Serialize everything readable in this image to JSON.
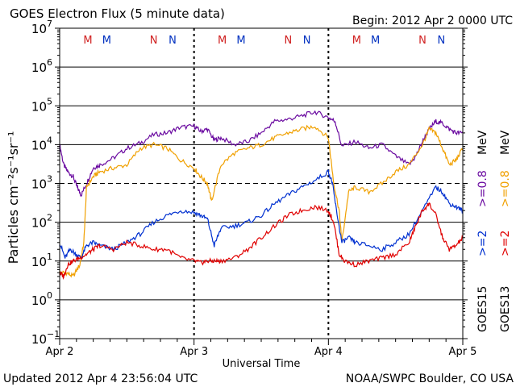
{
  "header": {
    "title": "GOES Electron Flux (5 minute data)",
    "begin": "Begin: 2012 Apr 2 0000 UTC"
  },
  "footer": {
    "updated": "Updated 2012 Apr  4 23:56:04 UTC",
    "credit": "NOAA/SWPC Boulder, CO USA"
  },
  "chart_data": {
    "type": "line",
    "title": "GOES Electron Flux (5 minute data)",
    "xlabel": "Universal Time",
    "ylabel": "Particles cm⁻²s⁻¹sr⁻¹",
    "x_unit": "day (Apr 2 = 0)",
    "xlim": [
      0,
      3
    ],
    "ylim_log10": [
      -1,
      7
    ],
    "log_scale_y": true,
    "grid": "horizontal at each decade; dashed line at 10^3",
    "x_tick_labels": [
      "Apr 2",
      "Apr 3",
      "Apr 4",
      "Apr 5"
    ],
    "y_tick_exponents": [
      -1,
      0,
      1,
      2,
      3,
      4,
      5,
      6,
      7
    ],
    "right_labels": {
      "goes13": "GOES13",
      "goes15": "GOES15",
      "e2_goes13": ">=2",
      "e08_goes13": ">=0.8",
      "e2_goes15": ">=2",
      "e08_goes15": ">=0.8",
      "mev": "MeV"
    },
    "colors": {
      "goes13_2mev": "#e00000",
      "goes13_08mev": "#f0a000",
      "goes15_2mev": "#0030d0",
      "goes15_08mev": "#6a0aa0",
      "marker_M": "#d02020",
      "marker_N": "#0030c0"
    },
    "markers": [
      {
        "label": "M",
        "x": 0.21,
        "color_key": "marker_M"
      },
      {
        "label": "M",
        "x": 0.35,
        "color_key": "marker_N"
      },
      {
        "label": "N",
        "x": 0.7,
        "color_key": "marker_M"
      },
      {
        "label": "N",
        "x": 0.84,
        "color_key": "marker_N"
      },
      {
        "label": "M",
        "x": 1.21,
        "color_key": "marker_M"
      },
      {
        "label": "M",
        "x": 1.35,
        "color_key": "marker_N"
      },
      {
        "label": "N",
        "x": 1.7,
        "color_key": "marker_M"
      },
      {
        "label": "N",
        "x": 1.84,
        "color_key": "marker_N"
      },
      {
        "label": "M",
        "x": 2.21,
        "color_key": "marker_M"
      },
      {
        "label": "M",
        "x": 2.35,
        "color_key": "marker_N"
      },
      {
        "label": "N",
        "x": 2.7,
        "color_key": "marker_M"
      },
      {
        "label": "N",
        "x": 2.84,
        "color_key": "marker_N"
      }
    ],
    "series": [
      {
        "name": "GOES15 >=0.8 MeV",
        "color_key": "goes15_08mev",
        "x": [
          0,
          0.03,
          0.06,
          0.1,
          0.13,
          0.16,
          0.2,
          0.25,
          0.3,
          0.4,
          0.5,
          0.6,
          0.7,
          0.8,
          0.9,
          1.0,
          1.05,
          1.1,
          1.15,
          1.2,
          1.3,
          1.4,
          1.5,
          1.6,
          1.7,
          1.8,
          1.9,
          2.0,
          2.05,
          2.1,
          2.2,
          2.3,
          2.4,
          2.5,
          2.6,
          2.65,
          2.7,
          2.75,
          2.8,
          2.85,
          2.9,
          2.95,
          3.0
        ],
        "y": [
          10000,
          3000,
          2000,
          1500,
          800,
          500,
          1000,
          2500,
          3000,
          4500,
          8000,
          11000,
          18000,
          20000,
          28000,
          30000,
          22000,
          25000,
          13000,
          15000,
          10000,
          12000,
          20000,
          40000,
          45000,
          55000,
          70000,
          50000,
          40000,
          9000,
          12000,
          8000,
          10000,
          5000,
          3000,
          5000,
          12000,
          25000,
          40000,
          35000,
          25000,
          20000,
          20000
        ]
      },
      {
        "name": "GOES13 >=0.8 MeV",
        "color_key": "goes13_08mev",
        "x": [
          0,
          0.05,
          0.1,
          0.15,
          0.18,
          0.2,
          0.25,
          0.3,
          0.4,
          0.5,
          0.6,
          0.7,
          0.8,
          0.9,
          1.0,
          1.05,
          1.1,
          1.13,
          1.2,
          1.3,
          1.4,
          1.5,
          1.6,
          1.7,
          1.8,
          1.9,
          2.0,
          2.04,
          2.08,
          2.1,
          2.15,
          2.2,
          2.3,
          2.4,
          2.5,
          2.6,
          2.7,
          2.75,
          2.8,
          2.85,
          2.9,
          2.95,
          3.0
        ],
        "y": [
          5,
          5,
          4,
          8,
          30,
          800,
          1500,
          2000,
          2500,
          3000,
          8000,
          10000,
          8000,
          4000,
          2500,
          1500,
          1000,
          350,
          3000,
          6000,
          8000,
          10000,
          15000,
          20000,
          25000,
          30000,
          15000,
          1000,
          200,
          30,
          600,
          800,
          600,
          1000,
          2000,
          3000,
          10000,
          25000,
          20000,
          8000,
          3000,
          4000,
          8000
        ]
      },
      {
        "name": "GOES15 >=2 MeV",
        "color_key": "goes15_2mev",
        "x": [
          0,
          0.04,
          0.08,
          0.12,
          0.16,
          0.2,
          0.25,
          0.3,
          0.4,
          0.5,
          0.6,
          0.7,
          0.8,
          0.9,
          1.0,
          1.05,
          1.1,
          1.15,
          1.2,
          1.3,
          1.4,
          1.5,
          1.6,
          1.7,
          1.8,
          1.9,
          2.0,
          2.03,
          2.06,
          2.1,
          2.15,
          2.2,
          2.3,
          2.4,
          2.5,
          2.6,
          2.7,
          2.8,
          2.85,
          2.9,
          2.95,
          3.0
        ],
        "y": [
          30,
          12,
          20,
          15,
          12,
          25,
          30,
          25,
          20,
          30,
          50,
          100,
          150,
          200,
          180,
          150,
          120,
          25,
          70,
          80,
          100,
          150,
          300,
          500,
          800,
          1200,
          2000,
          1000,
          200,
          30,
          40,
          30,
          25,
          20,
          30,
          50,
          200,
          800,
          600,
          300,
          250,
          200
        ]
      },
      {
        "name": "GOES13 >=2 MeV",
        "color_key": "goes13_2mev",
        "x": [
          0,
          0.03,
          0.06,
          0.1,
          0.15,
          0.2,
          0.25,
          0.3,
          0.4,
          0.5,
          0.6,
          0.7,
          0.8,
          0.9,
          1.0,
          1.05,
          1.1,
          1.15,
          1.2,
          1.3,
          1.4,
          1.5,
          1.6,
          1.7,
          1.8,
          1.9,
          2.0,
          2.04,
          2.08,
          2.12,
          2.2,
          2.3,
          2.4,
          2.5,
          2.6,
          2.65,
          2.7,
          2.75,
          2.8,
          2.85,
          2.9,
          2.95,
          3.0
        ],
        "y": [
          5,
          4,
          8,
          10,
          12,
          15,
          20,
          25,
          20,
          30,
          25,
          20,
          20,
          12,
          10,
          9,
          10,
          10,
          10,
          12,
          20,
          40,
          80,
          150,
          200,
          250,
          200,
          100,
          15,
          10,
          8,
          10,
          12,
          15,
          30,
          80,
          200,
          300,
          150,
          40,
          20,
          25,
          40
        ]
      }
    ]
  }
}
